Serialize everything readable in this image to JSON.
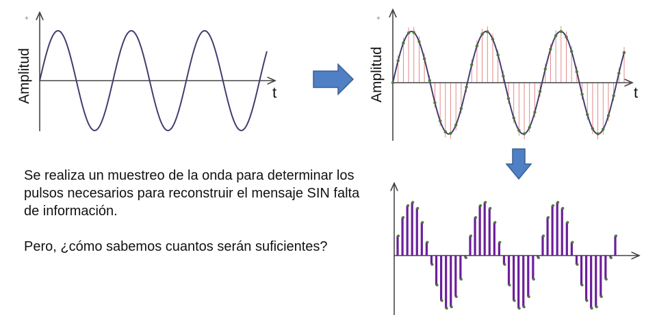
{
  "chart_data": [
    {
      "type": "line",
      "title": "",
      "xlabel": "t",
      "ylabel": "Amplitud",
      "positive_marker": "+",
      "series": [
        {
          "function": "sine",
          "cycles": 3.1,
          "amplitude": 1
        }
      ],
      "colors": {
        "wave": "#3f3d6e",
        "axis": "#444444"
      }
    },
    {
      "type": "line",
      "title": "",
      "xlabel": "t",
      "ylabel": "Amplitud",
      "positive_marker": "+",
      "series": [
        {
          "function": "sine",
          "cycles": 3.1,
          "amplitude": 1,
          "samples": 44
        }
      ],
      "colors": {
        "wave": "#3f3d6e",
        "sample_lines": "#e07a7a",
        "sample_points": "#4e7a3a",
        "axis": "#444444"
      }
    },
    {
      "type": "bar",
      "title": "",
      "description_values": "pulse heights follow the sampled sine",
      "series": [
        {
          "function": "sine",
          "cycles": 3,
          "amplitude": 1,
          "samples": 45
        }
      ],
      "colors": {
        "bars": "#6b1f99",
        "bar_tips": "#4e7a3a",
        "axis": "#444444"
      }
    }
  ],
  "arrows": {
    "color": "#4f7fc4",
    "stroke": "#3a5f93"
  },
  "text": {
    "paragraph1": "Se realiza un muestreo de la onda para determinar los pulsos necesarios para reconstruir el mensaje SIN falta de información.",
    "paragraph2": "Pero, ¿cómo sabemos cuantos serán suficientes?"
  }
}
